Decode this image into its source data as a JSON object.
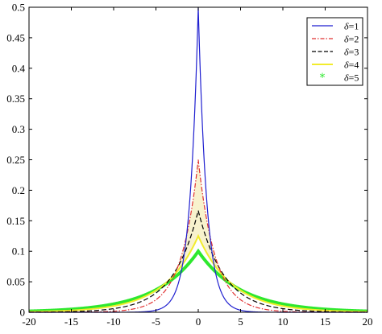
{
  "chart_data": {
    "type": "line",
    "title": "",
    "xlabel": "",
    "ylabel": "",
    "xlim": [
      -20,
      20
    ],
    "ylim": [
      0,
      0.5
    ],
    "x_ticks": [
      -20,
      -15,
      -10,
      -5,
      0,
      5,
      10,
      15,
      20
    ],
    "y_ticks": [
      0,
      0.05,
      0.1,
      0.15,
      0.2,
      0.25,
      0.3,
      0.35,
      0.4,
      0.45,
      0.5
    ],
    "x_tick_labels": [
      "-20",
      "-15",
      "-10",
      "-5",
      "0",
      "5",
      "10",
      "15",
      "20"
    ],
    "y_tick_labels": [
      "0",
      "0.05",
      "0.1",
      "0.15",
      "0.2",
      "0.25",
      "0.3",
      "0.35",
      "0.4",
      "0.45",
      "0.5"
    ],
    "grid": false,
    "legend_position": "top-right",
    "x": [
      -20,
      -15,
      -10,
      -8,
      -6,
      -5,
      -4,
      -3,
      -2,
      -1.5,
      -1,
      -0.5,
      -0.25,
      0,
      0.25,
      0.5,
      1,
      1.5,
      2,
      3,
      4,
      5,
      6,
      8,
      10,
      15,
      20
    ],
    "series": [
      {
        "name": "δ=1",
        "legend_symbol": "δ",
        "legend_value": "=1",
        "color": "#1f1fd0",
        "style": "solid",
        "values": [
          0.0,
          0.0,
          0.0,
          0.0002,
          0.0012,
          0.0034,
          0.0092,
          0.0249,
          0.0677,
          0.1116,
          0.1839,
          0.3033,
          0.3894,
          0.5,
          0.3894,
          0.3033,
          0.1839,
          0.1116,
          0.0677,
          0.0249,
          0.0092,
          0.0034,
          0.0012,
          0.0002,
          0.0,
          0.0,
          0.0
        ]
      },
      {
        "name": "δ=2",
        "legend_symbol": "δ",
        "legend_value": "=2",
        "color": "#e03030",
        "style": "dashdot",
        "values": [
          0.0,
          0.0003,
          0.0017,
          0.0046,
          0.0124,
          0.0205,
          0.0338,
          0.0558,
          0.092,
          0.1181,
          0.1516,
          0.1947,
          0.2206,
          0.25,
          0.2206,
          0.1947,
          0.1516,
          0.1181,
          0.092,
          0.0558,
          0.0338,
          0.0205,
          0.0124,
          0.0046,
          0.0017,
          0.0003,
          0.0
        ]
      },
      {
        "name": "δ=3",
        "legend_symbol": "δ",
        "legend_value": "=3",
        "color": "#000000",
        "style": "dashed",
        "values": [
          0.0002,
          0.0011,
          0.006,
          0.0116,
          0.0226,
          0.0315,
          0.0439,
          0.0613,
          0.0856,
          0.1011,
          0.1194,
          0.1411,
          0.1533,
          0.1667,
          0.1533,
          0.1411,
          0.1194,
          0.1011,
          0.0856,
          0.0613,
          0.0439,
          0.0315,
          0.0226,
          0.0116,
          0.006,
          0.0011,
          0.0002
        ]
      },
      {
        "name": "δ=4",
        "legend_symbol": "δ",
        "legend_value": "=4",
        "color": "#f2ec2c",
        "style": "solid",
        "values": [
          0.0008,
          0.0029,
          0.0103,
          0.0169,
          0.0279,
          0.0358,
          0.046,
          0.059,
          0.0758,
          0.0859,
          0.0974,
          0.1103,
          0.1175,
          0.125,
          0.1175,
          0.1103,
          0.0974,
          0.0859,
          0.0758,
          0.059,
          0.046,
          0.0358,
          0.0279,
          0.0169,
          0.0103,
          0.0029,
          0.0008
        ]
      },
      {
        "name": "δ=5",
        "legend_symbol": "δ",
        "legend_value": "=5",
        "color": "#2ee82e",
        "style": "markers",
        "values": [
          0.0037,
          0.005,
          0.0135,
          0.0202,
          0.0301,
          0.0368,
          0.0449,
          0.0549,
          0.067,
          0.0741,
          0.0819,
          0.0905,
          0.0951,
          0.1,
          0.0951,
          0.0905,
          0.0819,
          0.0741,
          0.067,
          0.0549,
          0.0449,
          0.0368,
          0.0301,
          0.0202,
          0.0135,
          0.005,
          0.0037
        ]
      }
    ]
  }
}
